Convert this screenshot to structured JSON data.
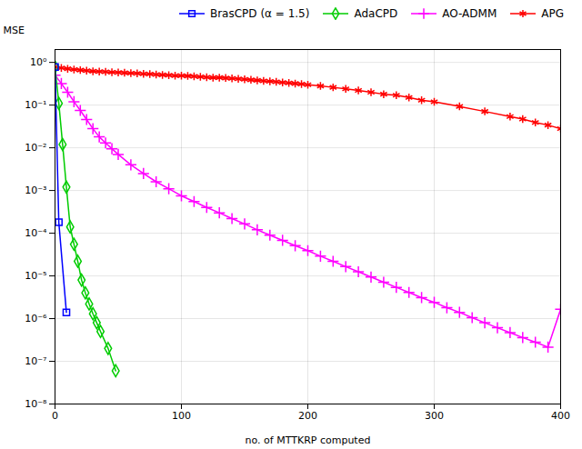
{
  "chart_data": {
    "type": "line",
    "xlabel": "no. of MTTKRP computed",
    "ylabel": "MSE",
    "log": "y",
    "xlim": [
      0,
      400
    ],
    "xticks": [
      0,
      100,
      200,
      300,
      400
    ],
    "ylim": [
      1e-08,
      2.0
    ],
    "yticks": [
      {
        "value": 1e-08,
        "label": "10⁻⁸"
      },
      {
        "value": 1e-07,
        "label": "10⁻⁷"
      },
      {
        "value": 1e-06,
        "label": "10⁻⁶"
      },
      {
        "value": 1e-05,
        "label": "10⁻⁵"
      },
      {
        "value": 0.0001,
        "label": "10⁻⁴"
      },
      {
        "value": 0.001,
        "label": "10⁻³"
      },
      {
        "value": 0.01,
        "label": "10⁻²"
      },
      {
        "value": 0.1,
        "label": "10⁻¹"
      },
      {
        "value": 1,
        "label": "10⁰"
      }
    ],
    "grid": true,
    "legend": "upper right",
    "series": [
      {
        "name": "BrasCPD (α = 1.5)",
        "color": "#0000ff",
        "marker": "square",
        "line_style": "solid",
        "x": [
          0,
          3,
          9
        ],
        "values": [
          0.78,
          0.00018,
          1.4e-06
        ]
      },
      {
        "name": "AdaCPD",
        "color": "#00cc00",
        "marker": "diamond",
        "line_style": "solid",
        "x": [
          0,
          3,
          6,
          9,
          12,
          15,
          18,
          21,
          24,
          27,
          30,
          33,
          36,
          42,
          48
        ],
        "values": [
          0.78,
          0.11,
          0.012,
          0.0012,
          0.00014,
          5.5e-05,
          2.2e-05,
          8e-06,
          4e-06,
          2.2e-06,
          1.3e-06,
          8e-07,
          5e-07,
          2e-07,
          6e-08
        ]
      },
      {
        "name": "AO-ADMM",
        "color": "#ff00ff",
        "marker": "plus",
        "line_style": "solid",
        "x": [
          0,
          5,
          10,
          15,
          20,
          25,
          30,
          35,
          40,
          45,
          50,
          60,
          70,
          80,
          90,
          100,
          110,
          120,
          130,
          140,
          150,
          160,
          170,
          180,
          190,
          200,
          210,
          220,
          230,
          240,
          250,
          260,
          270,
          280,
          290,
          300,
          310,
          320,
          330,
          340,
          350,
          360,
          370,
          380,
          390,
          400
        ],
        "values": [
          0.5,
          0.32,
          0.2,
          0.12,
          0.075,
          0.046,
          0.028,
          0.018,
          0.013,
          0.0095,
          0.007,
          0.004,
          0.0025,
          0.0016,
          0.0011,
          0.00075,
          0.00055,
          0.0004,
          0.0003,
          0.00022,
          0.000165,
          0.00012,
          9e-05,
          6.8e-05,
          5.1e-05,
          3.9e-05,
          2.9e-05,
          2.2e-05,
          1.65e-05,
          1.25e-05,
          9.4e-06,
          7.1e-06,
          5.4e-06,
          4.1e-06,
          3.1e-06,
          2.4e-06,
          1.8e-06,
          1.4e-06,
          1.05e-06,
          8e-07,
          6.1e-07,
          4.7e-07,
          3.6e-07,
          2.8e-07,
          2.15e-07,
          1.65e-06
        ]
      },
      {
        "name": "APG",
        "color": "#ff0000",
        "marker": "asterisk",
        "line_style": "solid",
        "x": [
          0,
          5,
          10,
          15,
          20,
          25,
          30,
          35,
          40,
          45,
          50,
          55,
          60,
          65,
          70,
          75,
          80,
          85,
          90,
          95,
          100,
          105,
          110,
          115,
          120,
          125,
          130,
          135,
          140,
          145,
          150,
          155,
          160,
          165,
          170,
          175,
          180,
          185,
          190,
          195,
          200,
          210,
          220,
          230,
          240,
          250,
          260,
          270,
          280,
          290,
          300,
          320,
          340,
          360,
          370,
          380,
          390,
          400
        ],
        "values": [
          0.78,
          0.74,
          0.71,
          0.68,
          0.66,
          0.64,
          0.62,
          0.61,
          0.6,
          0.59,
          0.58,
          0.57,
          0.56,
          0.55,
          0.54,
          0.53,
          0.52,
          0.51,
          0.5,
          0.49,
          0.49,
          0.48,
          0.47,
          0.46,
          0.45,
          0.44,
          0.44,
          0.43,
          0.42,
          0.41,
          0.4,
          0.39,
          0.38,
          0.37,
          0.36,
          0.35,
          0.34,
          0.33,
          0.32,
          0.31,
          0.3,
          0.28,
          0.26,
          0.24,
          0.22,
          0.2,
          0.18,
          0.17,
          0.15,
          0.13,
          0.12,
          0.093,
          0.071,
          0.054,
          0.047,
          0.039,
          0.034,
          0.028
        ]
      }
    ]
  }
}
